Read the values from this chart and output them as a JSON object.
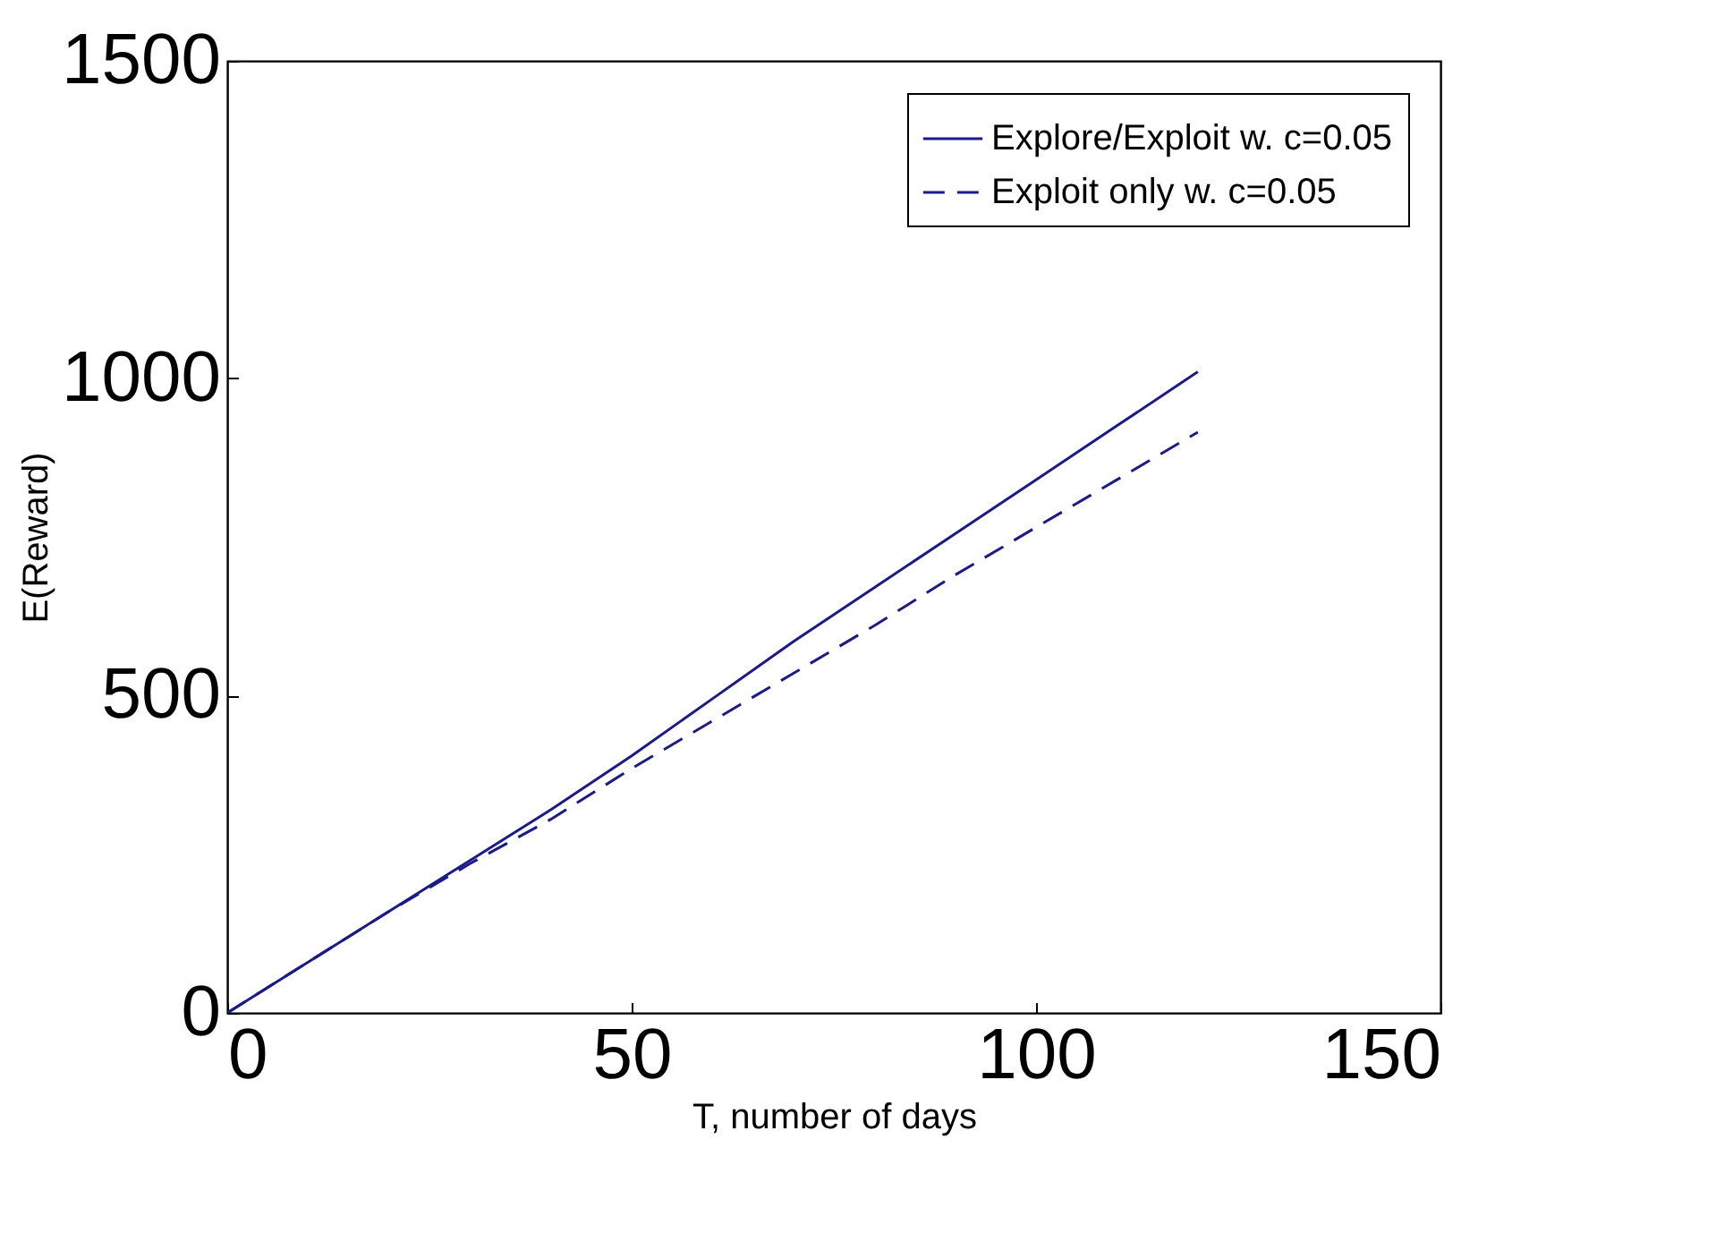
{
  "chart_data": {
    "type": "line",
    "xlabel": "T, number of days",
    "ylabel": "E(Reward)",
    "x": [
      0,
      10,
      20,
      30,
      40,
      50,
      60,
      70,
      80,
      90,
      100,
      110,
      120
    ],
    "series": [
      {
        "name": "Explore/Exploit w. c=0.05",
        "color": "#1a1a8c",
        "line_style": "solid",
        "values": [
          0,
          80,
          160,
          240,
          320,
          405,
          495,
          585,
          670,
          755,
          840,
          925,
          1010
        ]
      },
      {
        "name": "Exploit only w. c=0.05",
        "color": "#1a1a8c",
        "line_style": "dashed",
        "values": [
          0,
          80,
          160,
          235,
          305,
          385,
          460,
          535,
          610,
          690,
          765,
          840,
          915
        ]
      }
    ],
    "xlim": [
      0,
      150
    ],
    "xticks": [
      0,
      50,
      100,
      150
    ],
    "ylim": [
      0,
      1500
    ],
    "yticks": [
      0,
      500,
      1000,
      1500
    ],
    "grid": false,
    "legend": "top right",
    "marker": "none"
  }
}
